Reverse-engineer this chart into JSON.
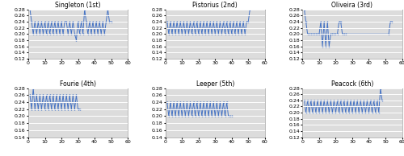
{
  "subplots": [
    {
      "title": "Singleton (1st)",
      "xlim": [
        0,
        60
      ],
      "ylim": [
        0.12,
        0.28
      ],
      "yticks": [
        0.12,
        0.14,
        0.16,
        0.18,
        0.2,
        0.22,
        0.24,
        0.26,
        0.28
      ],
      "xticks": [
        0,
        10,
        20,
        30,
        40,
        50,
        60
      ],
      "data_x": [
        1,
        2,
        3,
        4,
        5,
        6,
        7,
        8,
        9,
        10,
        11,
        12,
        13,
        14,
        15,
        16,
        17,
        18,
        19,
        20,
        21,
        22,
        23,
        24,
        25,
        26,
        27,
        28,
        29,
        30,
        31,
        32,
        33,
        34,
        35,
        36,
        37,
        38,
        39,
        40,
        41,
        42,
        43,
        44,
        45,
        46,
        47,
        48,
        49,
        50
      ],
      "data_y": [
        0.28,
        0.24,
        0.2,
        0.24,
        0.2,
        0.24,
        0.2,
        0.24,
        0.2,
        0.24,
        0.2,
        0.24,
        0.2,
        0.24,
        0.2,
        0.24,
        0.2,
        0.24,
        0.2,
        0.24,
        0.2,
        0.24,
        0.24,
        0.2,
        0.24,
        0.2,
        0.24,
        0.2,
        0.18,
        0.24,
        0.2,
        0.24,
        0.2,
        0.28,
        0.24,
        0.2,
        0.24,
        0.2,
        0.24,
        0.2,
        0.24,
        0.2,
        0.24,
        0.2,
        0.24,
        0.2,
        0.24,
        0.28,
        0.24,
        0.24
      ]
    },
    {
      "title": "Pistorius (2nd)",
      "xlim": [
        0,
        60
      ],
      "ylim": [
        0.12,
        0.28
      ],
      "yticks": [
        0.12,
        0.14,
        0.16,
        0.18,
        0.2,
        0.22,
        0.24,
        0.26,
        0.28
      ],
      "xticks": [
        0,
        10,
        20,
        30,
        40,
        50,
        60
      ],
      "data_x": [
        1,
        2,
        3,
        4,
        5,
        6,
        7,
        8,
        9,
        10,
        11,
        12,
        13,
        14,
        15,
        16,
        17,
        18,
        19,
        20,
        21,
        22,
        23,
        24,
        25,
        26,
        27,
        28,
        29,
        30,
        31,
        32,
        33,
        34,
        35,
        36,
        37,
        38,
        39,
        40,
        41,
        42,
        43,
        44,
        45,
        46,
        47,
        48,
        49,
        50,
        51
      ],
      "data_y": [
        0.24,
        0.2,
        0.24,
        0.2,
        0.24,
        0.2,
        0.24,
        0.2,
        0.24,
        0.2,
        0.24,
        0.2,
        0.24,
        0.2,
        0.24,
        0.2,
        0.24,
        0.2,
        0.24,
        0.2,
        0.24,
        0.2,
        0.24,
        0.2,
        0.24,
        0.2,
        0.24,
        0.2,
        0.24,
        0.2,
        0.24,
        0.2,
        0.24,
        0.2,
        0.24,
        0.2,
        0.24,
        0.2,
        0.24,
        0.2,
        0.24,
        0.2,
        0.24,
        0.2,
        0.24,
        0.2,
        0.24,
        0.2,
        0.24,
        0.24,
        0.28
      ]
    },
    {
      "title": "Oliveira (3rd)",
      "xlim": [
        0,
        60
      ],
      "ylim": [
        0.12,
        0.28
      ],
      "yticks": [
        0.12,
        0.14,
        0.16,
        0.18,
        0.2,
        0.22,
        0.24,
        0.26,
        0.28
      ],
      "xticks": [
        0,
        10,
        20,
        30,
        40,
        50,
        60
      ],
      "data_x": [
        1,
        2,
        3,
        4,
        5,
        6,
        7,
        8,
        9,
        10,
        11,
        12,
        13,
        14,
        15,
        16,
        17,
        18,
        19,
        20,
        21,
        22,
        23,
        24,
        25,
        26,
        52,
        53,
        54
      ],
      "data_y": [
        0.28,
        0.24,
        0.2,
        0.2,
        0.2,
        0.2,
        0.2,
        0.2,
        0.2,
        0.2,
        0.24,
        0.16,
        0.24,
        0.16,
        0.24,
        0.16,
        0.2,
        0.2,
        0.2,
        0.2,
        0.2,
        0.24,
        0.24,
        0.2,
        0.2,
        0.2,
        0.2,
        0.24,
        0.24
      ]
    },
    {
      "title": "Fourie (4th)",
      "xlim": [
        0,
        60
      ],
      "ylim": [
        0.14,
        0.28
      ],
      "yticks": [
        0.14,
        0.16,
        0.18,
        0.2,
        0.22,
        0.24,
        0.26,
        0.28
      ],
      "xticks": [
        0,
        10,
        20,
        30,
        40,
        50,
        60
      ],
      "data_x": [
        1,
        2,
        3,
        4,
        5,
        6,
        7,
        8,
        9,
        10,
        11,
        12,
        13,
        14,
        15,
        16,
        17,
        18,
        19,
        20,
        21,
        22,
        23,
        24,
        25,
        26,
        27,
        28,
        29,
        30,
        31
      ],
      "data_y": [
        0.26,
        0.22,
        0.28,
        0.22,
        0.26,
        0.22,
        0.26,
        0.22,
        0.26,
        0.22,
        0.26,
        0.22,
        0.26,
        0.22,
        0.26,
        0.22,
        0.26,
        0.22,
        0.26,
        0.22,
        0.26,
        0.22,
        0.26,
        0.22,
        0.26,
        0.22,
        0.26,
        0.22,
        0.26,
        0.22,
        0.22
      ]
    },
    {
      "title": "Leeper (5th)",
      "xlim": [
        0,
        60
      ],
      "ylim": [
        0.14,
        0.28
      ],
      "yticks": [
        0.14,
        0.16,
        0.18,
        0.2,
        0.22,
        0.24,
        0.26,
        0.28
      ],
      "xticks": [
        0,
        10,
        20,
        30,
        40,
        50,
        60
      ],
      "data_x": [
        1,
        2,
        3,
        4,
        5,
        6,
        7,
        8,
        9,
        10,
        11,
        12,
        13,
        14,
        15,
        16,
        17,
        18,
        19,
        20,
        21,
        22,
        23,
        24,
        25,
        26,
        27,
        28,
        29,
        30,
        31,
        32,
        33,
        34,
        35,
        36,
        37,
        38,
        39,
        40
      ],
      "data_y": [
        0.24,
        0.2,
        0.24,
        0.2,
        0.24,
        0.2,
        0.24,
        0.2,
        0.24,
        0.2,
        0.24,
        0.2,
        0.24,
        0.2,
        0.24,
        0.2,
        0.24,
        0.2,
        0.24,
        0.2,
        0.24,
        0.2,
        0.24,
        0.2,
        0.24,
        0.2,
        0.24,
        0.2,
        0.24,
        0.2,
        0.24,
        0.2,
        0.24,
        0.2,
        0.24,
        0.2,
        0.24,
        0.2,
        0.2,
        0.2
      ]
    },
    {
      "title": "Peacock (6th)",
      "xlim": [
        0,
        60
      ],
      "ylim": [
        0.12,
        0.28
      ],
      "yticks": [
        0.12,
        0.14,
        0.16,
        0.18,
        0.2,
        0.22,
        0.24,
        0.26,
        0.28
      ],
      "xticks": [
        0,
        10,
        20,
        30,
        40,
        50,
        60
      ],
      "data_x": [
        1,
        2,
        3,
        4,
        5,
        6,
        7,
        8,
        9,
        10,
        11,
        12,
        13,
        14,
        15,
        16,
        17,
        18,
        19,
        20,
        21,
        22,
        23,
        24,
        25,
        26,
        27,
        28,
        29,
        30,
        31,
        32,
        33,
        34,
        35,
        36,
        37,
        38,
        39,
        40,
        41,
        42,
        43,
        44,
        45,
        46,
        47,
        48
      ],
      "data_y": [
        0.24,
        0.2,
        0.24,
        0.2,
        0.24,
        0.2,
        0.24,
        0.2,
        0.24,
        0.2,
        0.24,
        0.2,
        0.24,
        0.2,
        0.24,
        0.2,
        0.24,
        0.2,
        0.24,
        0.2,
        0.24,
        0.2,
        0.24,
        0.2,
        0.24,
        0.2,
        0.24,
        0.2,
        0.24,
        0.2,
        0.24,
        0.2,
        0.24,
        0.2,
        0.24,
        0.2,
        0.24,
        0.2,
        0.24,
        0.2,
        0.24,
        0.2,
        0.24,
        0.2,
        0.24,
        0.2,
        0.28,
        0.24
      ]
    }
  ],
  "line_color": "#4472C4",
  "marker": "o",
  "markersize": 1.2,
  "linewidth": 0.7,
  "axes_facecolor": "#DCDCDC",
  "grid_color": "#FFFFFF",
  "fig_bg": "#FFFFFF",
  "title_fontsize": 5.5,
  "tick_fontsize": 4.5,
  "tick_label_color": "#000000"
}
